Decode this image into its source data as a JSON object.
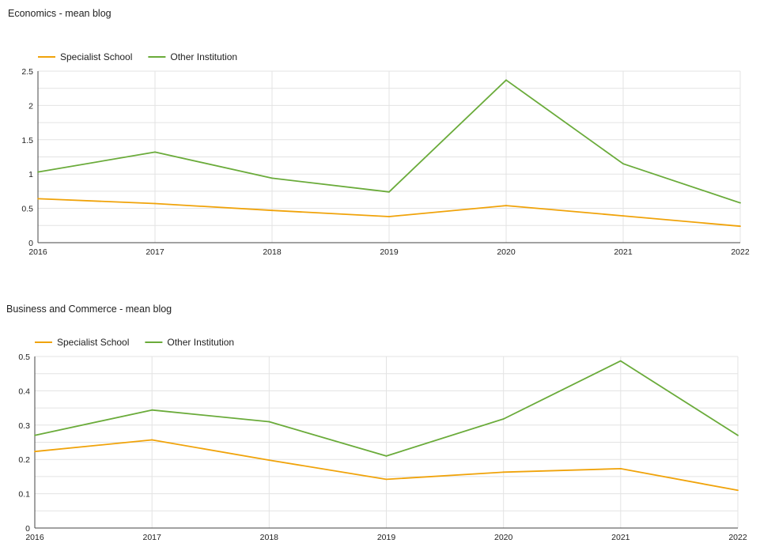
{
  "chart_data": [
    {
      "type": "line",
      "title": "Economics - mean blog",
      "x": [
        "2016",
        "2017",
        "2018",
        "2019",
        "2020",
        "2021",
        "2022"
      ],
      "yticks": [
        "0",
        "0.5",
        "1",
        "1.5",
        "2",
        "2.5"
      ],
      "ylim": [
        0,
        2.5
      ],
      "grid": true,
      "legend_position": "top-left",
      "series": [
        {
          "name": "Specialist School",
          "color": "#f0a30a",
          "values": [
            0.64,
            0.57,
            0.47,
            0.38,
            0.54,
            0.39,
            0.24
          ]
        },
        {
          "name": "Other Institution",
          "color": "#6aab3a",
          "values": [
            1.03,
            1.32,
            0.94,
            0.74,
            2.37,
            1.15,
            0.58
          ]
        }
      ]
    },
    {
      "type": "line",
      "title": "Business and Commerce - mean blog",
      "x": [
        "2016",
        "2017",
        "2018",
        "2019",
        "2020",
        "2021",
        "2022"
      ],
      "yticks": [
        "0",
        "0.1",
        "0.2",
        "0.3",
        "0.4",
        "0.5"
      ],
      "ylim": [
        0,
        0.5
      ],
      "grid": true,
      "legend_position": "top-left",
      "series": [
        {
          "name": "Specialist School",
          "color": "#f0a30a",
          "values": [
            0.223,
            0.257,
            0.198,
            0.142,
            0.163,
            0.173,
            0.11
          ]
        },
        {
          "name": "Other Institution",
          "color": "#6aab3a",
          "values": [
            0.27,
            0.344,
            0.31,
            0.21,
            0.318,
            0.487,
            0.27
          ]
        }
      ]
    }
  ]
}
